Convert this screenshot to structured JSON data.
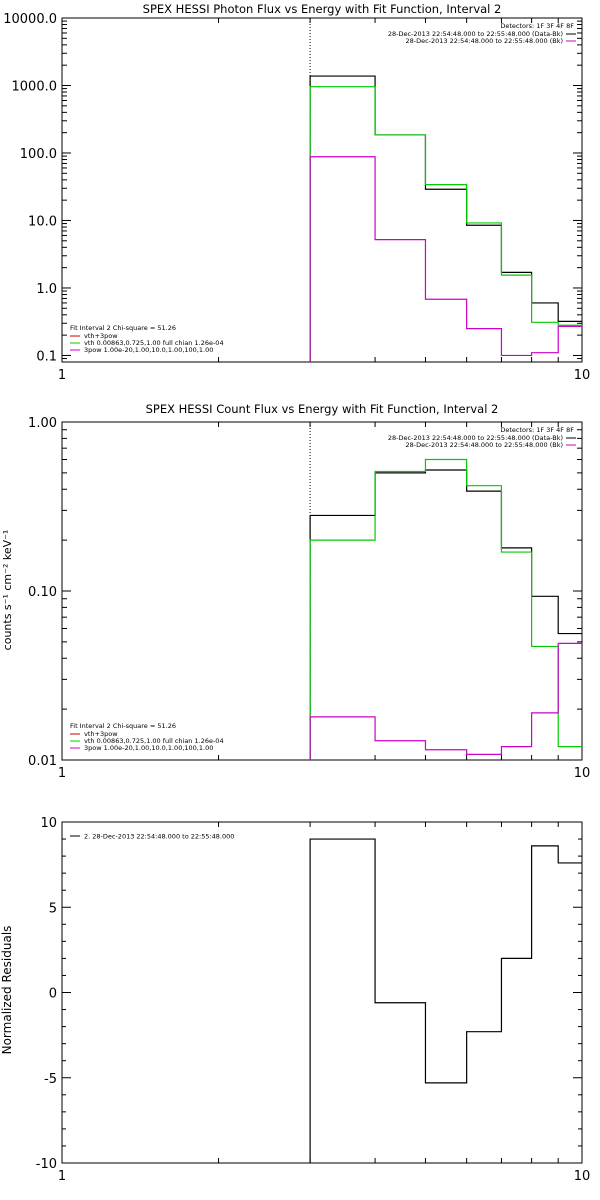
{
  "chart_data": [
    {
      "type": "line",
      "step": true,
      "title": "SPEX HESSI Photon Flux vs Energy with Fit Function, Interval 2",
      "xlabel": "",
      "ylabel": "",
      "xscale": "log",
      "yscale": "log",
      "xlim": [
        1,
        10
      ],
      "ylim": [
        0.08,
        10000
      ],
      "x_ticks": [
        {
          "value": 1,
          "label": "1"
        },
        {
          "value": 10,
          "label": "10"
        }
      ],
      "y_ticks": [
        {
          "value": 10000,
          "label": "10000.0"
        },
        {
          "value": 1000,
          "label": "1000.0"
        },
        {
          "value": 100,
          "label": "100.0"
        },
        {
          "value": 10,
          "label": "10.0"
        },
        {
          "value": 1,
          "label": "1.0"
        },
        {
          "value": 0.1,
          "label": "0.1"
        }
      ],
      "vline_x": 3.0,
      "bin_edges": [
        3.0,
        4.0,
        5.0,
        6.0,
        7.0,
        8.0,
        9.0,
        10.0
      ],
      "series": [
        {
          "color": "#000000",
          "values": [
            1380,
            185,
            29,
            8.5,
            1.7,
            0.6,
            0.32
          ]
        },
        {
          "color": "#00cc00",
          "values": [
            960,
            185,
            34,
            9.2,
            1.55,
            0.31,
            0.28
          ]
        },
        {
          "color": "#cc00cc",
          "values": [
            88,
            5.2,
            0.68,
            0.25,
            0.1,
            0.11,
            0.27
          ]
        }
      ],
      "legend_top": {
        "header": "Detectors: 1F 3F 4F 8F",
        "entries": [
          {
            "label": "28-Dec-2013 22:54:48.000 to 22:55:48.000 (Data-Bk)",
            "color": "#000000"
          },
          {
            "label": "28-Dec-2013 22:54:48.000 to 22:55:48.000 (Bk)",
            "color": "#cc00cc"
          }
        ]
      },
      "legend_bottom": {
        "header": "Fit Interval 2   Chi-square = 51.26",
        "entries": [
          {
            "label": "vth+3pow",
            "color": "#cc0000"
          },
          {
            "label": "vth 0.00863,0.725,1.00  full chian 1.26e-04",
            "color": "#00cc00"
          },
          {
            "label": "3pow 1.00e-20,1.00,10.0,1.00,100,1.00",
            "color": "#cc00cc"
          }
        ]
      }
    },
    {
      "type": "line",
      "step": true,
      "title": "SPEX HESSI Count Flux vs Energy with Fit Function, Interval 2",
      "xlabel": "",
      "ylabel": "counts s⁻¹ cm⁻² keV⁻¹",
      "xscale": "log",
      "yscale": "log",
      "xlim": [
        1,
        10
      ],
      "ylim": [
        0.01,
        1.0
      ],
      "x_ticks": [
        {
          "value": 1,
          "label": "1"
        },
        {
          "value": 10,
          "label": "10"
        }
      ],
      "y_ticks": [
        {
          "value": 1.0,
          "label": "1.00"
        },
        {
          "value": 0.1,
          "label": "0.10"
        },
        {
          "value": 0.01,
          "label": "0.01"
        }
      ],
      "vline_x": 3.0,
      "bin_edges": [
        3.0,
        4.0,
        5.0,
        6.0,
        7.0,
        8.0,
        9.0,
        10.0
      ],
      "series": [
        {
          "color": "#000000",
          "values": [
            0.28,
            0.5,
            0.52,
            0.39,
            0.18,
            0.093,
            0.056
          ]
        },
        {
          "color": "#00cc00",
          "values": [
            0.2,
            0.51,
            0.6,
            0.42,
            0.17,
            0.047,
            0.012
          ]
        },
        {
          "color": "#cc00cc",
          "values": [
            0.018,
            0.013,
            0.0115,
            0.0108,
            0.012,
            0.019,
            0.049
          ]
        }
      ],
      "legend_top": {
        "header": "Detectors: 1F 3F 4F 8F",
        "entries": [
          {
            "label": "28-Dec-2013 22:54:48.000 to 22:55:48.000 (Data-Bk)",
            "color": "#000000"
          },
          {
            "label": "28-Dec-2013 22:54:48.000 to 22:55:48.000 (Bk)",
            "color": "#cc00cc"
          }
        ]
      },
      "legend_bottom": {
        "header": "Fit Interval 2   Chi-square = 51.26",
        "entries": [
          {
            "label": "vth+3pow",
            "color": "#cc0000"
          },
          {
            "label": "vth 0.00863,0.725,1.00  full chian 1.26e-04",
            "color": "#00cc00"
          },
          {
            "label": "3pow 1.00e-20,1.00,10.0,1.00,100,1.00",
            "color": "#cc00cc"
          }
        ]
      }
    },
    {
      "type": "line",
      "step": true,
      "title": "",
      "xlabel": "",
      "ylabel": "Normalized Residuals",
      "xscale": "log",
      "yscale": "linear",
      "xlim": [
        1,
        10
      ],
      "ylim": [
        -10,
        10
      ],
      "x_ticks": [
        {
          "value": 1,
          "label": "1"
        },
        {
          "value": 10,
          "label": "10"
        }
      ],
      "y_ticks": [
        {
          "value": 10,
          "label": "10"
        },
        {
          "value": 5,
          "label": "5"
        },
        {
          "value": 0,
          "label": "0"
        },
        {
          "value": -5,
          "label": "-5"
        },
        {
          "value": -10,
          "label": "-10"
        }
      ],
      "bin_edges": [
        3.0,
        4.0,
        5.0,
        6.0,
        7.0,
        8.0,
        9.0,
        10.0
      ],
      "series": [
        {
          "color": "#000000",
          "values": [
            9.0,
            -0.6,
            -5.3,
            -2.3,
            2.0,
            8.6,
            7.6
          ]
        }
      ],
      "legend_top": {
        "header": "",
        "entries": [
          {
            "label": "2. 28-Dec-2013 22:54:48.000 to 22:55:48.000",
            "color": "#000000"
          }
        ]
      }
    }
  ]
}
